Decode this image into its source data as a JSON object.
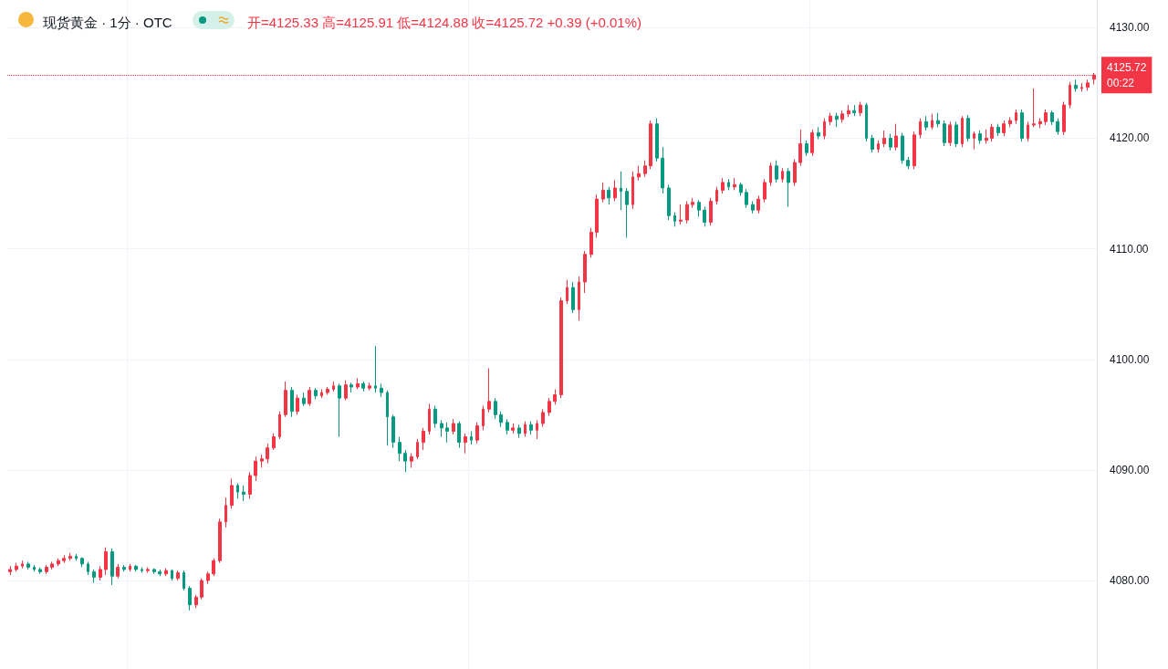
{
  "chart_data": {
    "type": "candlestick",
    "title": "现货黄金 · 1分 · OTC",
    "subtitle": "开=4125.33 高=4125.91 低=4124.88 收=4125.72 +0.39 (+0.01%)",
    "annotations": [
      "00:22"
    ],
    "categories": [
      null,
      null,
      null,
      null,
      null,
      null,
      null,
      null,
      null,
      null,
      null,
      null,
      null,
      null,
      null,
      null,
      null,
      null,
      null,
      null,
      null,
      null,
      null,
      null,
      null,
      null,
      null,
      null,
      null,
      null,
      null,
      null,
      null,
      null,
      null,
      null,
      null,
      null,
      null,
      null,
      null,
      null,
      null,
      null,
      null,
      null,
      null,
      null,
      null,
      null,
      null,
      null,
      null,
      null,
      null,
      null,
      null,
      null,
      null,
      null,
      null,
      null,
      null,
      null,
      null,
      null,
      null,
      null,
      null,
      null,
      null,
      null,
      null,
      null,
      null,
      null,
      null,
      null,
      null,
      null,
      null,
      null,
      null,
      null,
      null,
      null,
      null,
      null,
      null,
      null,
      null,
      null,
      null,
      null,
      null,
      null,
      null,
      null,
      null,
      null,
      null,
      null,
      null,
      null,
      null,
      null,
      null,
      null,
      null,
      null,
      null,
      null,
      null,
      null,
      null,
      null,
      null,
      null,
      null,
      null,
      null,
      null,
      null,
      null,
      null,
      null,
      null,
      null,
      null,
      null,
      null,
      null,
      null,
      null,
      null,
      null,
      null,
      null,
      null,
      null,
      null,
      null,
      null,
      null,
      null,
      null,
      null,
      null,
      null,
      null,
      null,
      null,
      null,
      null,
      null,
      null,
      null,
      null,
      null,
      null,
      null,
      null,
      null,
      null,
      null,
      null,
      null,
      null,
      null,
      null,
      null,
      null,
      null,
      null,
      null,
      null,
      null,
      null,
      null,
      null,
      null,
      null
    ],
    "ohlc": [
      [
        4080.8,
        4081.3,
        4080.5,
        4081.0
      ],
      [
        4081.0,
        4081.6,
        4080.8,
        4081.3
      ],
      [
        4081.3,
        4081.8,
        4081.1,
        4081.5
      ],
      [
        4081.5,
        4081.7,
        4081.0,
        4081.2
      ],
      [
        4081.2,
        4081.4,
        4080.8,
        4081.0
      ],
      [
        4081.0,
        4081.2,
        4080.6,
        4080.8
      ],
      [
        4080.8,
        4081.4,
        4080.6,
        4081.2
      ],
      [
        4081.2,
        4081.7,
        4081.0,
        4081.5
      ],
      [
        4081.5,
        4082.0,
        4081.3,
        4081.8
      ],
      [
        4081.8,
        4082.3,
        4081.6,
        4082.0
      ],
      [
        4082.0,
        4082.5,
        4081.8,
        4082.2
      ],
      [
        4082.2,
        4082.4,
        4081.8,
        4082.0
      ],
      [
        4082.0,
        4082.1,
        4081.2,
        4081.5
      ],
      [
        4081.5,
        4081.7,
        4080.5,
        4080.8
      ],
      [
        4080.8,
        4081.0,
        4079.8,
        4080.3
      ],
      [
        4080.3,
        4081.3,
        4080.0,
        4081.0
      ],
      [
        4081.0,
        4083.0,
        4080.5,
        4082.6
      ],
      [
        4082.6,
        4082.9,
        4079.6,
        4080.4
      ],
      [
        4080.4,
        4081.5,
        4080.2,
        4081.2
      ],
      [
        4081.2,
        4081.4,
        4080.8,
        4081.0
      ],
      [
        4081.0,
        4081.5,
        4080.8,
        4081.3
      ],
      [
        4081.3,
        4081.4,
        4080.8,
        4081.0
      ],
      [
        4081.0,
        4081.2,
        4080.7,
        4080.9
      ],
      [
        4080.9,
        4081.2,
        4080.7,
        4081.0
      ],
      [
        4081.0,
        4081.1,
        4080.6,
        4080.8
      ],
      [
        4080.8,
        4081.0,
        4080.4,
        4080.6
      ],
      [
        4080.6,
        4081.1,
        4080.4,
        4080.9
      ],
      [
        4080.9,
        4081.0,
        4080.0,
        4080.2
      ],
      [
        4080.2,
        4080.9,
        4080.0,
        4080.7
      ],
      [
        4080.7,
        4080.9,
        4079.1,
        4079.3
      ],
      [
        4079.3,
        4079.5,
        4077.3,
        4077.8
      ],
      [
        4077.8,
        4078.7,
        4077.5,
        4078.5
      ],
      [
        4078.5,
        4080.2,
        4078.3,
        4080.0
      ],
      [
        4080.0,
        4080.8,
        4079.7,
        4080.6
      ],
      [
        4080.6,
        4082.0,
        4080.4,
        4081.8
      ],
      [
        4081.8,
        4085.6,
        4081.6,
        4085.3
      ],
      [
        4085.3,
        4087.5,
        4084.8,
        4086.8
      ],
      [
        4086.8,
        4089.2,
        4086.5,
        4088.6
      ],
      [
        4088.6,
        4088.8,
        4087.4,
        4088.0
      ],
      [
        4088.0,
        4088.6,
        4087.2,
        4087.8
      ],
      [
        4087.8,
        4089.8,
        4087.4,
        4089.5
      ],
      [
        4089.5,
        4091.2,
        4089.0,
        4090.8
      ],
      [
        4090.8,
        4091.4,
        4090.2,
        4091.0
      ],
      [
        4091.0,
        4092.4,
        4090.6,
        4092.0
      ],
      [
        4092.0,
        4093.3,
        4091.8,
        4093.0
      ],
      [
        4093.0,
        4095.3,
        4092.8,
        4095.0
      ],
      [
        4095.0,
        4098.0,
        4094.8,
        4097.2
      ],
      [
        4097.2,
        4097.5,
        4094.8,
        4095.3
      ],
      [
        4095.3,
        4096.8,
        4095.0,
        4096.5
      ],
      [
        4096.5,
        4097.0,
        4095.8,
        4096.0
      ],
      [
        4096.0,
        4097.5,
        4095.8,
        4097.2
      ],
      [
        4097.2,
        4097.4,
        4096.4,
        4096.7
      ],
      [
        4096.7,
        4097.3,
        4096.5,
        4097.0
      ],
      [
        4097.0,
        4097.5,
        4096.8,
        4097.3
      ],
      [
        4097.3,
        4098.0,
        4097.1,
        4097.6
      ],
      [
        4097.6,
        4097.8,
        4093.0,
        4096.5
      ],
      [
        4096.5,
        4098.1,
        4096.3,
        4097.7
      ],
      [
        4097.7,
        4097.9,
        4097.0,
        4097.5
      ],
      [
        4097.5,
        4098.3,
        4097.3,
        4097.8
      ],
      [
        4097.8,
        4098.0,
        4097.1,
        4097.4
      ],
      [
        4097.4,
        4097.9,
        4097.2,
        4097.6
      ],
      [
        4097.6,
        4101.2,
        4097.0,
        4097.4
      ],
      [
        4097.4,
        4097.8,
        4096.6,
        4097.0
      ],
      [
        4097.0,
        4097.2,
        4092.2,
        4094.8
      ],
      [
        4094.8,
        4095.0,
        4092.0,
        4092.5
      ],
      [
        4092.5,
        4093.0,
        4090.8,
        4091.5
      ],
      [
        4091.5,
        4091.8,
        4089.8,
        4090.8
      ],
      [
        4090.8,
        4091.5,
        4090.2,
        4091.2
      ],
      [
        4091.2,
        4092.8,
        4091.0,
        4092.5
      ],
      [
        4092.5,
        4093.8,
        4091.8,
        4093.5
      ],
      [
        4093.5,
        4096.0,
        4093.2,
        4095.5
      ],
      [
        4095.5,
        4095.8,
        4093.8,
        4094.2
      ],
      [
        4094.2,
        4094.5,
        4093.0,
        4093.8
      ],
      [
        4093.8,
        4094.3,
        4092.5,
        4093.5
      ],
      [
        4093.5,
        4094.6,
        4093.2,
        4094.2
      ],
      [
        4094.2,
        4094.4,
        4092.0,
        4092.5
      ],
      [
        4092.5,
        4093.3,
        4091.5,
        4093.0
      ],
      [
        4093.0,
        4093.5,
        4092.3,
        4092.7
      ],
      [
        4092.7,
        4094.3,
        4092.4,
        4094.0
      ],
      [
        4094.0,
        4095.8,
        4093.6,
        4095.5
      ],
      [
        4095.5,
        4099.2,
        4095.2,
        4096.2
      ],
      [
        4096.2,
        4096.5,
        4094.6,
        4095.0
      ],
      [
        4095.0,
        4095.3,
        4093.9,
        4094.3
      ],
      [
        4094.3,
        4094.6,
        4093.2,
        4093.6
      ],
      [
        4093.6,
        4094.2,
        4093.3,
        4093.8
      ],
      [
        4093.8,
        4094.1,
        4092.9,
        4093.3
      ],
      [
        4093.3,
        4094.4,
        4093.0,
        4094.1
      ],
      [
        4094.1,
        4094.4,
        4093.2,
        4093.6
      ],
      [
        4093.6,
        4094.5,
        4092.8,
        4094.2
      ],
      [
        4094.2,
        4095.5,
        4093.9,
        4095.2
      ],
      [
        4095.2,
        4096.5,
        4094.9,
        4096.2
      ],
      [
        4096.2,
        4097.3,
        4095.9,
        4096.8
      ],
      [
        4096.8,
        4105.6,
        4096.5,
        4105.3
      ],
      [
        4105.3,
        4107.2,
        4105.0,
        4106.5
      ],
      [
        4106.5,
        4107.0,
        4104.2,
        4104.5
      ],
      [
        4104.5,
        4107.5,
        4103.5,
        4107.0
      ],
      [
        4107.0,
        4109.8,
        4106.0,
        4109.5
      ],
      [
        4109.5,
        4111.9,
        4109.2,
        4111.5
      ],
      [
        4111.5,
        4114.9,
        4111.0,
        4114.5
      ],
      [
        4114.5,
        4116.0,
        4114.2,
        4115.3
      ],
      [
        4115.3,
        4115.6,
        4114.0,
        4114.6
      ],
      [
        4114.6,
        4116.2,
        4114.3,
        4115.5
      ],
      [
        4115.5,
        4117.0,
        4113.5,
        4115.2
      ],
      [
        4115.2,
        4115.5,
        4111.0,
        4114.0
      ],
      [
        4114.0,
        4117.0,
        4113.6,
        4116.5
      ],
      [
        4116.5,
        4117.5,
        4116.2,
        4116.8
      ],
      [
        4116.8,
        4118.0,
        4116.5,
        4117.5
      ],
      [
        4117.5,
        4121.6,
        4117.2,
        4121.3
      ],
      [
        4121.3,
        4121.8,
        4117.9,
        4118.2
      ],
      [
        4118.2,
        4119.2,
        4115.0,
        4115.5
      ],
      [
        4115.5,
        4115.8,
        4112.6,
        4113.0
      ],
      [
        4113.0,
        4113.3,
        4112.0,
        4112.5
      ],
      [
        4112.5,
        4114.0,
        4112.2,
        4112.6
      ],
      [
        4112.6,
        4114.3,
        4112.3,
        4114.0
      ],
      [
        4114.0,
        4114.6,
        4113.7,
        4114.2
      ],
      [
        4114.2,
        4114.4,
        4112.9,
        4113.5
      ],
      [
        4113.5,
        4113.8,
        4112.0,
        4112.4
      ],
      [
        4112.4,
        4114.6,
        4112.1,
        4114.3
      ],
      [
        4114.3,
        4115.6,
        4114.0,
        4115.3
      ],
      [
        4115.3,
        4116.4,
        4115.0,
        4116.0
      ],
      [
        4116.0,
        4116.3,
        4115.3,
        4115.6
      ],
      [
        4115.6,
        4116.4,
        4115.3,
        4115.8
      ],
      [
        4115.8,
        4116.0,
        4114.8,
        4115.1
      ],
      [
        4115.1,
        4115.4,
        4113.7,
        4114.0
      ],
      [
        4114.0,
        4114.3,
        4113.2,
        4113.5
      ],
      [
        4113.5,
        4114.8,
        4113.2,
        4114.5
      ],
      [
        4114.5,
        4116.3,
        4114.2,
        4116.0
      ],
      [
        4116.0,
        4117.8,
        4115.7,
        4117.5
      ],
      [
        4117.5,
        4118.0,
        4116.0,
        4116.3
      ],
      [
        4116.3,
        4117.3,
        4116.0,
        4117.0
      ],
      [
        4117.0,
        4117.3,
        4113.8,
        4116.0
      ],
      [
        4116.0,
        4118.1,
        4115.7,
        4117.8
      ],
      [
        4117.8,
        4120.8,
        4117.5,
        4119.5
      ],
      [
        4119.5,
        4119.8,
        4118.4,
        4118.7
      ],
      [
        4118.7,
        4120.8,
        4118.4,
        4120.5
      ],
      [
        4120.5,
        4121.0,
        4119.9,
        4120.2
      ],
      [
        4120.2,
        4121.8,
        4119.9,
        4121.5
      ],
      [
        4121.5,
        4122.3,
        4121.2,
        4122.0
      ],
      [
        4122.0,
        4122.3,
        4121.0,
        4121.7
      ],
      [
        4121.7,
        4122.5,
        4121.4,
        4122.2
      ],
      [
        4122.2,
        4123.0,
        4121.9,
        4122.5
      ],
      [
        4122.5,
        4123.0,
        4122.0,
        4122.3
      ],
      [
        4122.3,
        4123.3,
        4122.0,
        4123.0
      ],
      [
        4123.0,
        4123.2,
        4119.7,
        4120.0
      ],
      [
        4120.0,
        4120.3,
        4118.7,
        4119.0
      ],
      [
        4119.0,
        4119.8,
        4118.7,
        4119.5
      ],
      [
        4119.5,
        4120.7,
        4119.2,
        4120.0
      ],
      [
        4120.0,
        4120.4,
        4118.9,
        4119.2
      ],
      [
        4119.2,
        4121.3,
        4118.9,
        4120.2
      ],
      [
        4120.2,
        4120.5,
        4117.7,
        4118.0
      ],
      [
        4118.0,
        4118.3,
        4117.2,
        4117.5
      ],
      [
        4117.5,
        4120.6,
        4117.2,
        4120.3
      ],
      [
        4120.3,
        4121.8,
        4120.0,
        4121.5
      ],
      [
        4121.5,
        4122.0,
        4120.7,
        4121.0
      ],
      [
        4121.0,
        4122.2,
        4120.8,
        4121.6
      ],
      [
        4121.6,
        4122.3,
        4121.0,
        4121.3
      ],
      [
        4121.3,
        4121.6,
        4119.3,
        4119.6
      ],
      [
        4119.6,
        4121.5,
        4119.3,
        4121.2
      ],
      [
        4121.2,
        4121.5,
        4119.2,
        4119.5
      ],
      [
        4119.5,
        4122.0,
        4119.2,
        4121.8
      ],
      [
        4121.8,
        4122.1,
        4119.7,
        4120.0
      ],
      [
        4120.0,
        4120.6,
        4119.0,
        4120.4
      ],
      [
        4120.4,
        4120.7,
        4119.5,
        4119.8
      ],
      [
        4119.8,
        4120.8,
        4119.5,
        4120.0
      ],
      [
        4120.0,
        4121.3,
        4119.7,
        4121.0
      ],
      [
        4121.0,
        4121.3,
        4120.2,
        4120.5
      ],
      [
        4120.5,
        4121.6,
        4120.2,
        4121.3
      ],
      [
        4121.3,
        4121.9,
        4121.0,
        4121.6
      ],
      [
        4121.6,
        4122.6,
        4121.3,
        4122.3
      ],
      [
        4122.3,
        4122.6,
        4119.7,
        4120.0
      ],
      [
        4120.0,
        4121.5,
        4119.7,
        4121.2
      ],
      [
        4121.2,
        4124.5,
        4121.0,
        4121.3
      ],
      [
        4121.3,
        4121.8,
        4120.9,
        4121.5
      ],
      [
        4121.5,
        4122.6,
        4121.2,
        4122.3
      ],
      [
        4122.3,
        4122.5,
        4121.2,
        4121.5
      ],
      [
        4121.5,
        4121.8,
        4120.3,
        4120.6
      ],
      [
        4120.6,
        4123.3,
        4120.3,
        4123.0
      ],
      [
        4123.0,
        4125.1,
        4122.7,
        4124.8
      ],
      [
        4124.8,
        4125.3,
        4124.2,
        4124.5
      ],
      [
        4124.5,
        4125.0,
        4124.2,
        4124.6
      ],
      [
        4124.6,
        4125.3,
        4124.3,
        4125.0
      ],
      [
        4125.33,
        4125.91,
        4124.88,
        4125.72
      ]
    ],
    "colors": [
      "#f23645",
      "#f23645",
      "#f23645",
      "#089981",
      "#089981",
      "#089981",
      "#f23645",
      "#f23645",
      "#f23645",
      "#f23645",
      "#f23645",
      "#089981",
      "#089981",
      "#089981",
      "#089981",
      "#f23645",
      "#f23645",
      "#089981",
      "#f23645",
      "#089981",
      "#f23645",
      "#089981",
      "#089981",
      "#f23645",
      "#089981",
      "#089981",
      "#f23645",
      "#089981",
      "#f23645",
      "#089981",
      "#089981",
      "#f23645",
      "#f23645",
      "#f23645",
      "#f23645",
      "#f23645",
      "#f23645",
      "#f23645",
      "#089981",
      "#089981",
      "#f23645",
      "#f23645",
      "#f23645",
      "#f23645",
      "#f23645",
      "#f23645",
      "#f23645",
      "#089981",
      "#f23645",
      "#089981",
      "#f23645",
      "#089981",
      "#f23645",
      "#f23645",
      "#f23645",
      "#089981",
      "#f23645",
      "#089981",
      "#f23645",
      "#089981",
      "#f23645",
      "#089981",
      "#089981",
      "#089981",
      "#089981",
      "#089981",
      "#089981",
      "#f23645",
      "#f23645",
      "#f23645",
      "#f23645",
      "#089981",
      "#089981",
      "#089981",
      "#f23645",
      "#089981",
      "#f23645",
      "#089981",
      "#f23645",
      "#f23645",
      "#f23645",
      "#089981",
      "#089981",
      "#089981",
      "#f23645",
      "#089981",
      "#f23645",
      "#089981",
      "#f23645",
      "#f23645",
      "#f23645",
      "#f23645",
      "#f23645",
      "#f23645",
      "#089981",
      "#f23645",
      "#f23645",
      "#f23645",
      "#f23645",
      "#f23645",
      "#089981",
      "#f23645",
      "#089981",
      "#089981",
      "#f23645",
      "#f23645",
      "#f23645",
      "#f23645",
      "#089981",
      "#089981",
      "#089981",
      "#089981",
      "#f23645",
      "#f23645",
      "#f23645",
      "#089981",
      "#089981",
      "#f23645",
      "#f23645",
      "#f23645",
      "#089981",
      "#f23645",
      "#089981",
      "#089981",
      "#089981",
      "#f23645",
      "#f23645",
      "#f23645",
      "#089981",
      "#f23645",
      "#089981",
      "#f23645",
      "#f23645",
      "#089981",
      "#f23645",
      "#089981",
      "#f23645",
      "#f23645",
      "#089981",
      "#f23645",
      "#f23645",
      "#089981",
      "#f23645",
      "#089981",
      "#089981",
      "#f23645",
      "#f23645",
      "#089981",
      "#f23645",
      "#089981",
      "#089981",
      "#f23645",
      "#f23645",
      "#089981",
      "#f23645",
      "#089981",
      "#089981",
      "#f23645",
      "#089981",
      "#f23645",
      "#089981",
      "#f23645",
      "#089981",
      "#f23645",
      "#f23645",
      "#089981",
      "#f23645",
      "#f23645",
      "#f23645",
      "#089981",
      "#f23645",
      "#f23645",
      "#f23645",
      "#f23645",
      "#089981",
      "#089981",
      "#f23645",
      "#f23645",
      "#089981",
      "#f23645",
      "#f23645",
      "#f23645"
    ],
    "ylim": [
      4072,
      4132.5
    ],
    "yticks": [
      {
        "value": 4080,
        "label": "4080.00"
      },
      {
        "value": 4090,
        "label": "4090.00"
      },
      {
        "value": 4100,
        "label": "4100.00"
      },
      {
        "value": 4110,
        "label": "4110.00"
      },
      {
        "value": 4120,
        "label": "4120.00"
      },
      {
        "value": 4130,
        "label": "4130.00"
      }
    ],
    "tick_labels": "y",
    "grid": true,
    "ref_lines": [
      {
        "axis": "y",
        "value": 4125.72,
        "label": "4125.72",
        "color": "#f23645",
        "line_style": "dotted"
      }
    ]
  }
}
